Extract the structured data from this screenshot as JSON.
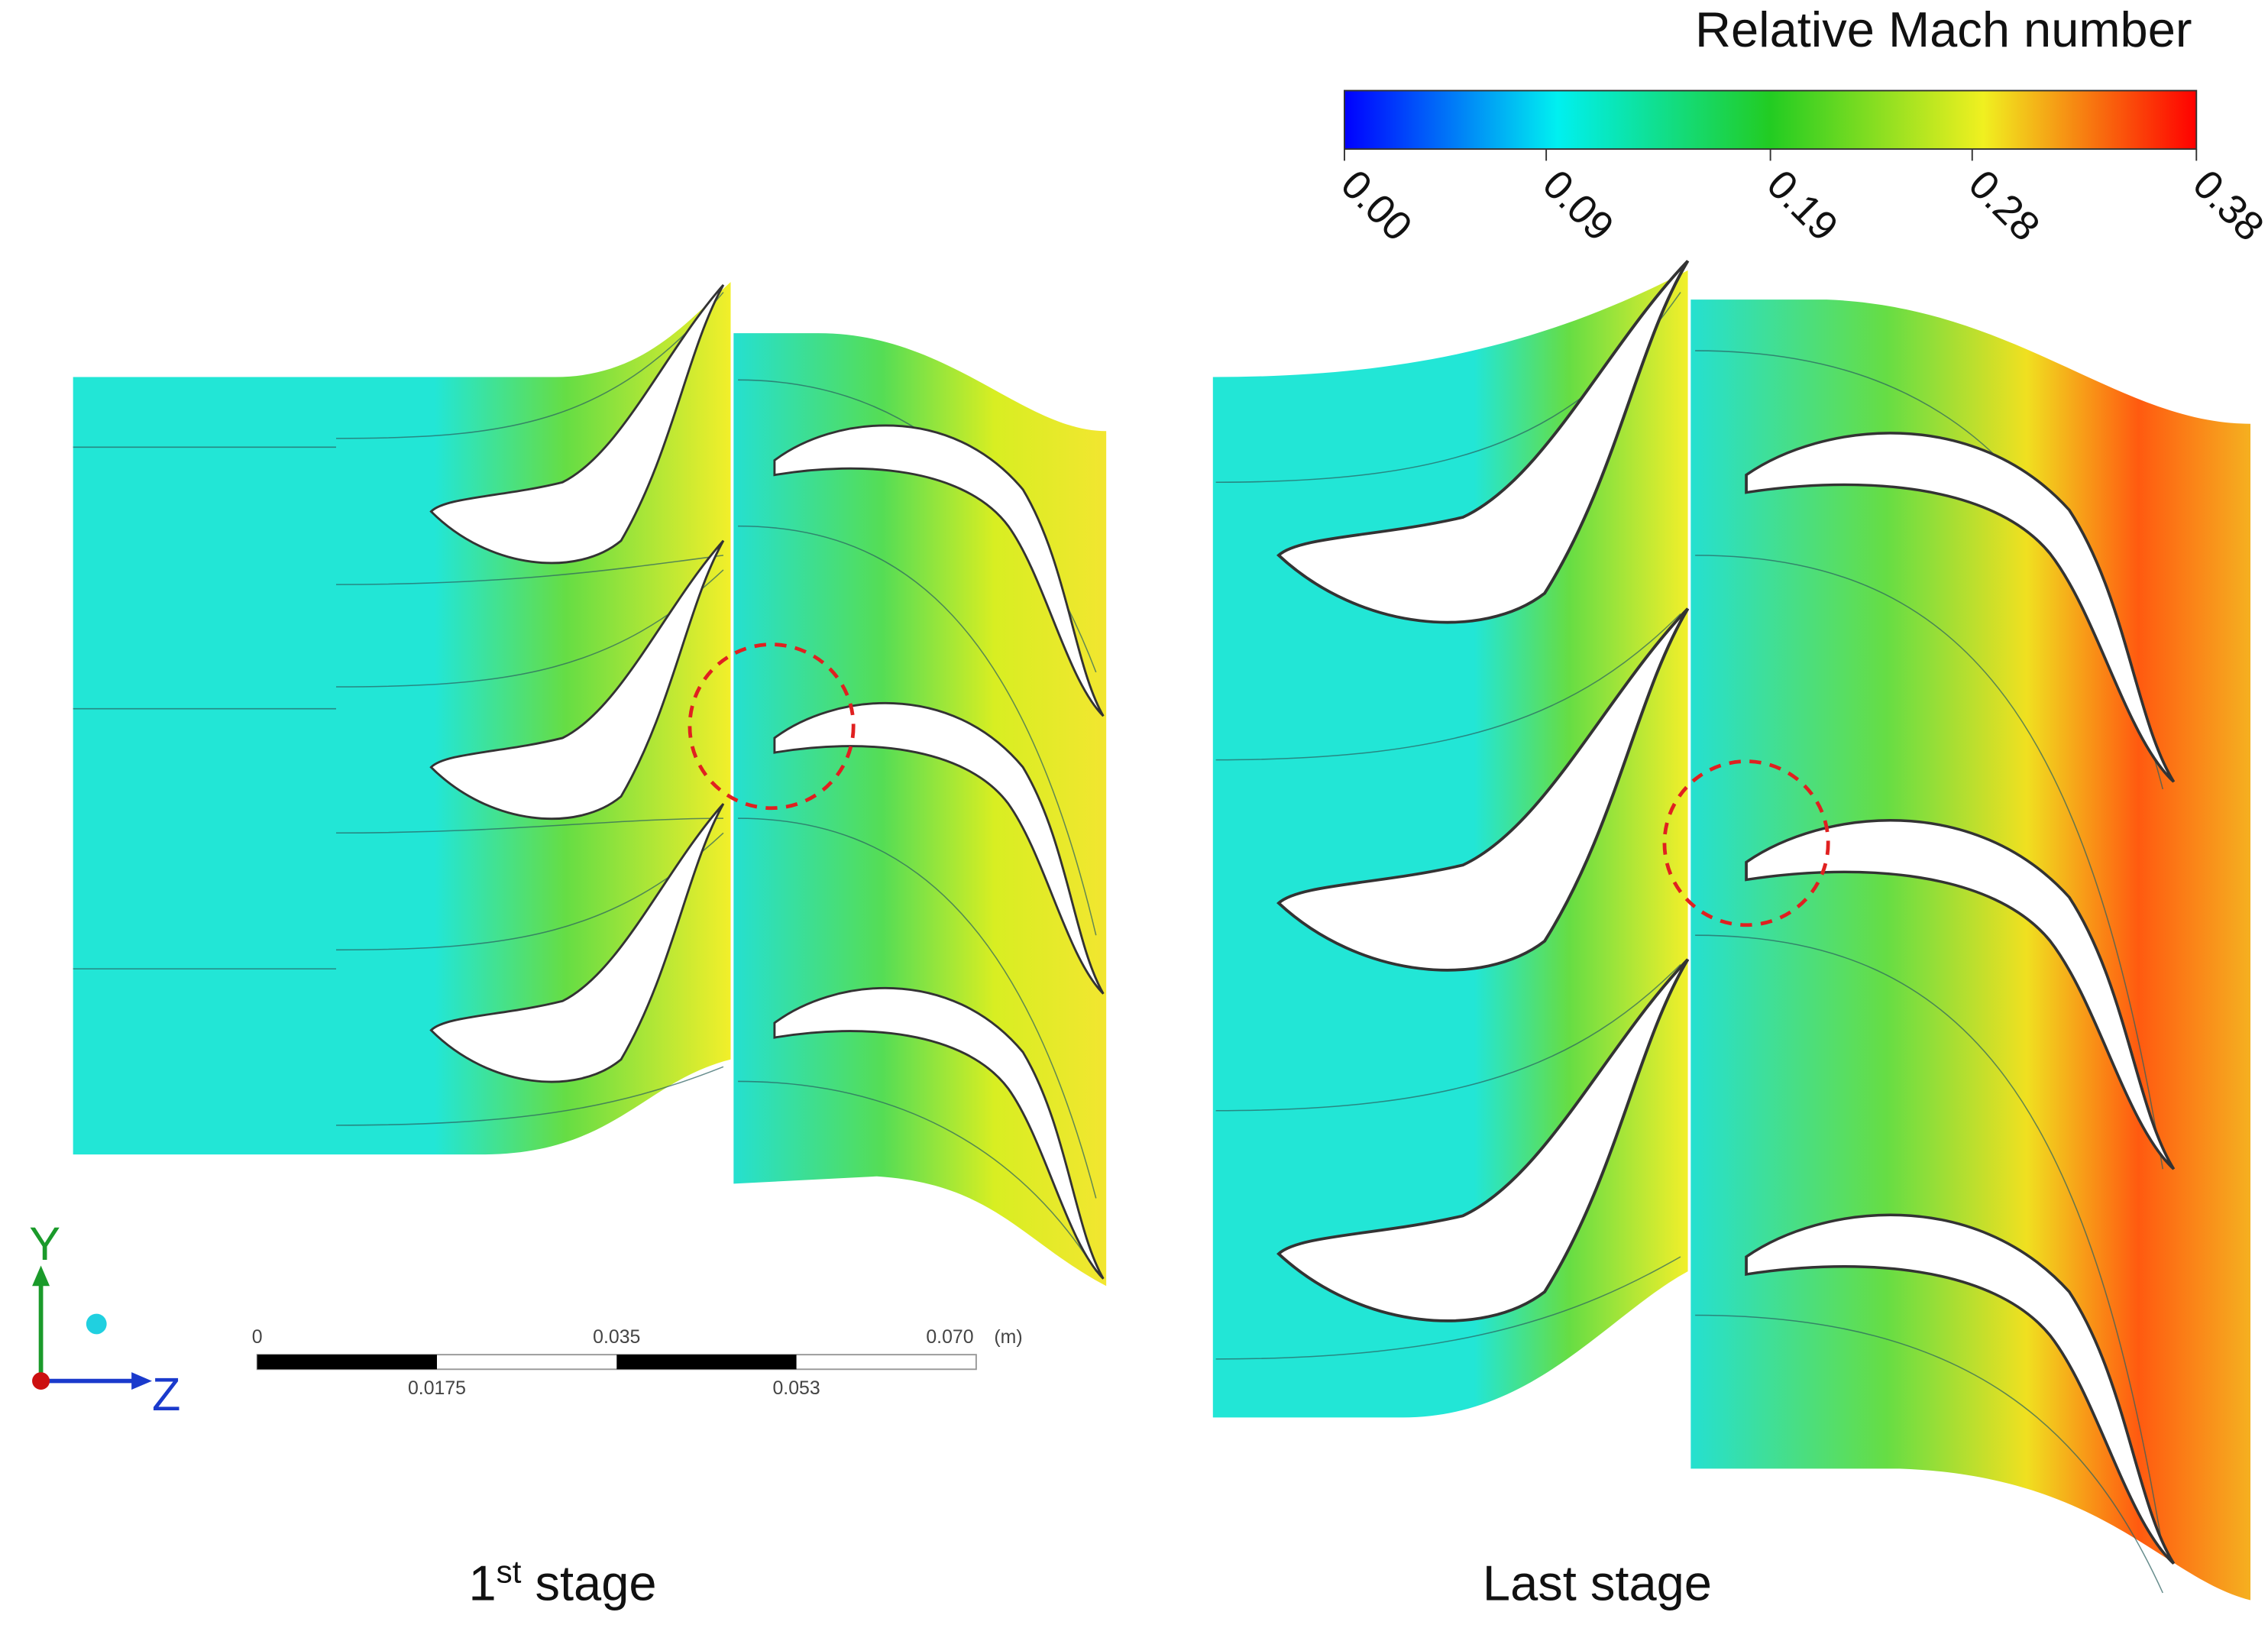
{
  "colorbar": {
    "title": "Relative Mach number",
    "range": [
      0,
      0.38
    ],
    "ticks": [
      {
        "value": 0,
        "label": "0.00"
      },
      {
        "value": 0.09,
        "label": "0.09"
      },
      {
        "value": 0.19,
        "label": "0.19"
      },
      {
        "value": 0.28,
        "label": "0.28"
      },
      {
        "value": 0.38,
        "label": "0.38"
      }
    ]
  },
  "axes": {
    "y": "Y",
    "z": "Z"
  },
  "scale_bar": {
    "top": [
      "0",
      "0.035",
      "0.070"
    ],
    "bottom": [
      "0.0175",
      "0.053"
    ],
    "unit": "(m)"
  },
  "captions": {
    "first": {
      "main": "1",
      "sup": "st",
      "rest": " stage"
    },
    "last": "Last stage"
  }
}
